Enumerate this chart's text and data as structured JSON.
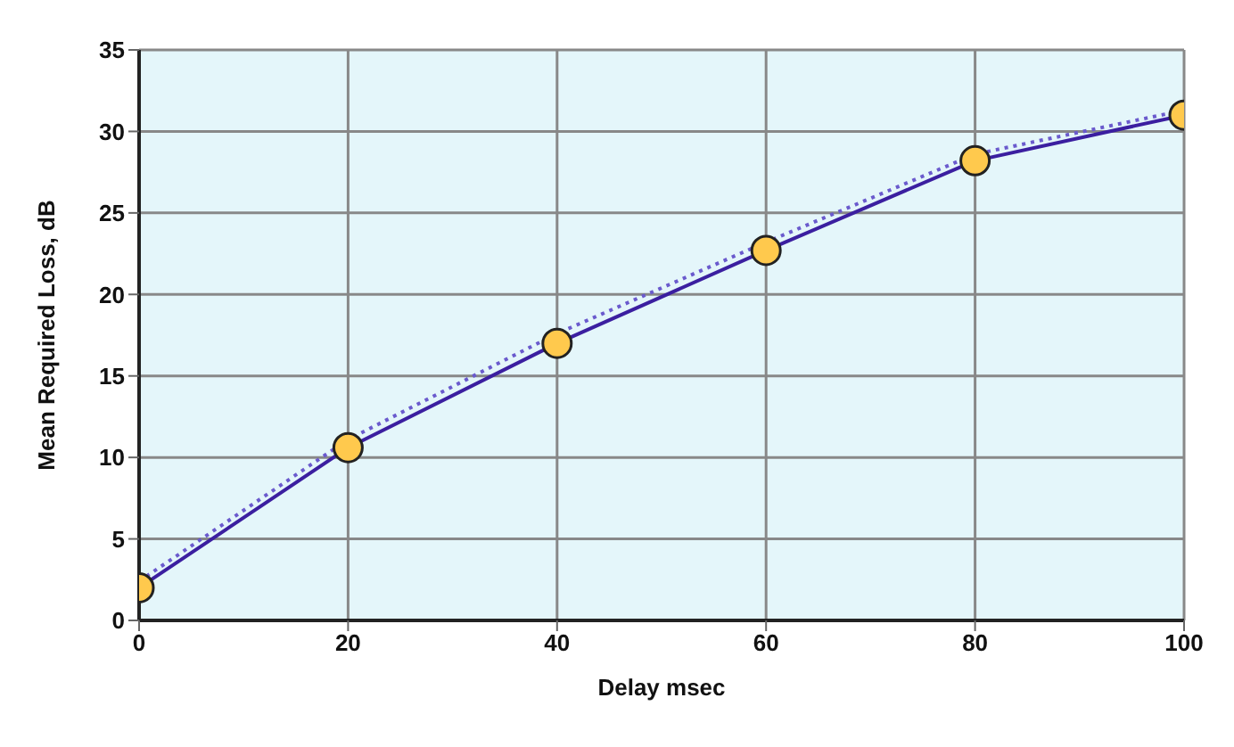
{
  "chart_data": {
    "type": "line",
    "xlabel": "Delay msec",
    "ylabel": "Mean Required Loss, dB",
    "xlim": [
      0,
      100
    ],
    "xticks": [
      0,
      20,
      40,
      60,
      80,
      100
    ],
    "ylim": [
      0,
      35
    ],
    "yticks": [
      0,
      5,
      10,
      15,
      20,
      25,
      30,
      35
    ],
    "grid": true,
    "series": [
      {
        "x": [
          0,
          20,
          40,
          60,
          80,
          100
        ],
        "values": [
          2,
          10.6,
          17,
          22.7,
          28.2,
          31
        ],
        "color": "#3b1fa0",
        "marker": "circle",
        "line_style": "solid"
      },
      {
        "x": [
          0,
          20,
          40,
          60,
          80,
          100
        ],
        "values": [
          2.4,
          11.1,
          17.6,
          23.2,
          28.6,
          31.3
        ],
        "color": "#6a5acd",
        "marker": "none",
        "line_style": "dotted"
      }
    ]
  }
}
